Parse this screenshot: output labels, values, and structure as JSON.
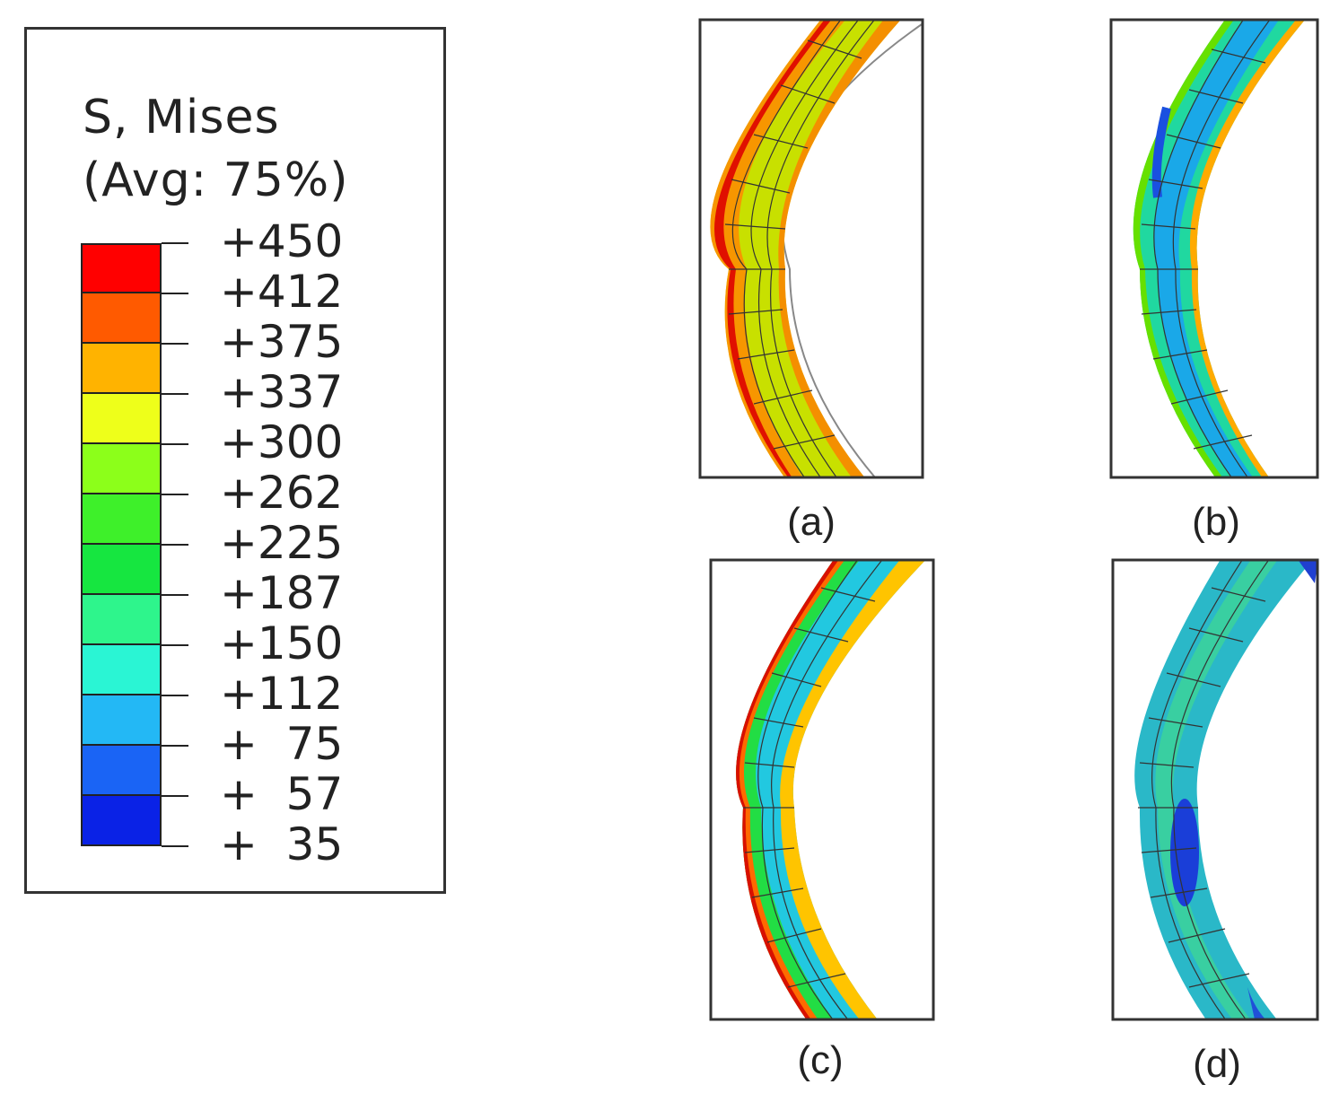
{
  "legend": {
    "title_line1": "S, Mises",
    "title_line2": "(Avg: 75%)",
    "labels": [
      "+450",
      "+412",
      "+375",
      "+337",
      "+300",
      "+262",
      "+225",
      "+187",
      "+150",
      "+112",
      "+  75",
      "+  57",
      "+  35"
    ],
    "colors": [
      "#ff0000",
      "#ff5a00",
      "#ffb300",
      "#eeff1a",
      "#8cff1a",
      "#3ef02a",
      "#16e640",
      "#2ef58c",
      "#2af5d4",
      "#23b8f5",
      "#1a64f5",
      "#0a22e6"
    ]
  },
  "panels": [
    {
      "caption": "(a)"
    },
    {
      "caption": "(b)"
    },
    {
      "caption": "(c)"
    },
    {
      "caption": "(d)"
    }
  ]
}
